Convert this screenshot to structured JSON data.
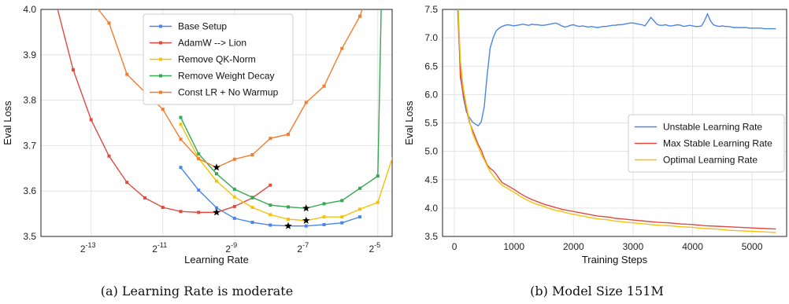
{
  "chart_data": [
    {
      "type": "line",
      "caption": "(a) Learning Rate is moderate",
      "xlabel": "Learning Rate",
      "ylabel": "Eval Loss",
      "xscale": "log2",
      "xlim": [
        -14.4,
        -4.6
      ],
      "ylim": [
        3.5,
        4.0
      ],
      "x_ticks": [
        -13,
        -11,
        -9,
        -7,
        -5
      ],
      "x_tick_labels": [
        {
          "base": "2",
          "exp": "-13"
        },
        {
          "base": "2",
          "exp": "-11"
        },
        {
          "base": "2",
          "exp": "-9"
        },
        {
          "base": "2",
          "exp": "-7"
        },
        {
          "base": "2",
          "exp": "-5"
        }
      ],
      "y_ticks": [
        "3.5",
        "3.6",
        "3.7",
        "3.8",
        "3.9",
        "4.0"
      ],
      "grid": true,
      "legend_position": "top-center",
      "series": [
        {
          "name": "Base Setup",
          "color": "#4a86e8",
          "x_log2": [
            -10.5,
            -10.0,
            -9.5,
            -9.0,
            -8.5,
            -8.0,
            -7.5,
            -7.0,
            -6.5,
            -6.0,
            -5.5
          ],
          "y": [
            3.652,
            3.602,
            3.563,
            3.54,
            3.531,
            3.525,
            3.523,
            3.523,
            3.526,
            3.53,
            3.543
          ],
          "best_index": 6
        },
        {
          "name": "AdamW --> Lion",
          "color": "#e04a3f",
          "x_log2": [
            -14.0,
            -13.5,
            -13.0,
            -12.5,
            -12.0,
            -11.5,
            -11.0,
            -10.5,
            -10.0,
            -9.5,
            -9.0,
            -8.5,
            -8.0
          ],
          "y": [
            4.02,
            3.867,
            3.757,
            3.677,
            3.619,
            3.585,
            3.564,
            3.555,
            3.553,
            3.553,
            3.566,
            3.585,
            3.613
          ],
          "best_index": 9
        },
        {
          "name": "Remove QK-Norm",
          "color": "#f4c20d",
          "x_log2": [
            -10.5,
            -10.0,
            -9.5,
            -9.0,
            -8.5,
            -8.0,
            -7.5,
            -7.0,
            -6.5,
            -6.0,
            -5.5,
            -5.0,
            -4.5
          ],
          "y": [
            3.747,
            3.672,
            3.622,
            3.587,
            3.564,
            3.548,
            3.538,
            3.535,
            3.543,
            3.543,
            3.56,
            3.575,
            3.696
          ],
          "best_index": 7
        },
        {
          "name": "Remove Weight Decay",
          "color": "#34a853",
          "x_log2": [
            -10.5,
            -10.0,
            -9.5,
            -9.0,
            -8.5,
            -8.0,
            -7.5,
            -7.0,
            -6.5,
            -6.0,
            -5.5,
            -5.0
          ],
          "y": [
            3.762,
            3.682,
            3.638,
            3.604,
            3.586,
            3.569,
            3.565,
            3.562,
            3.572,
            3.579,
            3.606,
            3.633
          ],
          "best_index": 7
        },
        {
          "name": "Const LR + No Warmup",
          "color": "#f57c2b",
          "x_log2": [
            -13.0,
            -12.5,
            -12.0,
            -11.5,
            -11.0,
            -10.5,
            -10.0,
            -9.5,
            -9.0,
            -8.5,
            -8.0,
            -7.5,
            -7.0,
            -6.5,
            -6.0,
            -5.5
          ],
          "y": [
            4.02,
            3.97,
            3.857,
            3.818,
            3.78,
            3.714,
            3.671,
            3.652,
            3.67,
            3.68,
            3.716,
            3.725,
            3.795,
            3.831,
            3.914,
            3.985
          ],
          "best_index": 7
        }
      ],
      "extra_segments": [
        {
          "color": "#34a853",
          "x_log2": [
            -5.0,
            -4.9
          ],
          "y": [
            3.633,
            4.02
          ]
        },
        {
          "color": "#f57c2b",
          "x_log2": [
            -5.5,
            -5.35
          ],
          "y": [
            3.985,
            4.02
          ]
        }
      ]
    },
    {
      "type": "line",
      "caption": "(b) Model Size 151M",
      "xlabel": "Training Steps",
      "ylabel": "Eval Loss",
      "xlim": [
        -200,
        5580
      ],
      "ylim": [
        3.5,
        7.5
      ],
      "x_ticks": [
        "0",
        "1000",
        "2000",
        "3000",
        "4000",
        "5000"
      ],
      "y_ticks": [
        "3.5",
        "4.0",
        "4.5",
        "5.0",
        "5.5",
        "6.0",
        "6.5",
        "7.0",
        "7.5"
      ],
      "grid": true,
      "legend_position": "center-right",
      "series": [
        {
          "name": "Unstable Learning Rate",
          "color": "#4a86e8",
          "x": [
            50,
            100,
            150,
            200,
            250,
            300,
            350,
            400,
            450,
            500,
            550,
            600,
            650,
            700,
            750,
            800,
            850,
            900,
            950,
            1000,
            1050,
            1100,
            1150,
            1200,
            1250,
            1300,
            1350,
            1400,
            1450,
            1500,
            1550,
            1600,
            1650,
            1700,
            1750,
            1800,
            1850,
            1900,
            1950,
            2000,
            2050,
            2100,
            2150,
            2200,
            2250,
            2300,
            2350,
            2400,
            2450,
            2500,
            2550,
            2600,
            2650,
            2700,
            2750,
            2800,
            2850,
            2900,
            2950,
            3000,
            3050,
            3100,
            3150,
            3200,
            3250,
            3300,
            3350,
            3400,
            3450,
            3500,
            3550,
            3600,
            3650,
            3700,
            3750,
            3800,
            3850,
            3900,
            3950,
            4000,
            4050,
            4100,
            4150,
            4200,
            4250,
            4300,
            4350,
            4400,
            4450,
            4500,
            4550,
            4600,
            4650,
            4700,
            4750,
            4800,
            4850,
            4900,
            4950,
            5000,
            5050,
            5100,
            5150,
            5200,
            5250,
            5300,
            5350,
            5400
          ],
          "y": [
            7.6,
            6.4,
            5.95,
            5.7,
            5.6,
            5.52,
            5.48,
            5.45,
            5.52,
            5.78,
            6.35,
            6.82,
            7.0,
            7.12,
            7.17,
            7.2,
            7.22,
            7.23,
            7.22,
            7.21,
            7.22,
            7.23,
            7.24,
            7.23,
            7.22,
            7.24,
            7.23,
            7.23,
            7.22,
            7.22,
            7.23,
            7.24,
            7.25,
            7.26,
            7.24,
            7.21,
            7.19,
            7.2,
            7.22,
            7.23,
            7.21,
            7.2,
            7.21,
            7.2,
            7.19,
            7.2,
            7.19,
            7.18,
            7.19,
            7.2,
            7.2,
            7.21,
            7.22,
            7.22,
            7.23,
            7.23,
            7.24,
            7.25,
            7.26,
            7.26,
            7.25,
            7.24,
            7.23,
            7.21,
            7.28,
            7.36,
            7.3,
            7.24,
            7.22,
            7.22,
            7.23,
            7.21,
            7.21,
            7.22,
            7.23,
            7.22,
            7.2,
            7.21,
            7.22,
            7.21,
            7.2,
            7.2,
            7.21,
            7.3,
            7.42,
            7.3,
            7.23,
            7.21,
            7.2,
            7.21,
            7.2,
            7.2,
            7.19,
            7.18,
            7.18,
            7.18,
            7.18,
            7.18,
            7.17,
            7.17,
            7.17,
            7.17,
            7.17,
            7.16,
            7.16,
            7.16,
            7.16,
            7.16
          ]
        },
        {
          "name": "Max Stable Learning Rate",
          "color": "#e04a3f",
          "x": [
            60,
            100,
            150,
            200,
            250,
            300,
            350,
            400,
            450,
            500,
            550,
            600,
            650,
            700,
            750,
            800,
            850,
            900,
            1000,
            1100,
            1200,
            1300,
            1400,
            1500,
            1600,
            1700,
            1800,
            1900,
            2000,
            2100,
            2200,
            2300,
            2400,
            2500,
            2600,
            2700,
            2800,
            2900,
            3000,
            3200,
            3400,
            3600,
            3800,
            4000,
            4200,
            4400,
            4600,
            4800,
            5000,
            5200,
            5400
          ],
          "y": [
            7.6,
            6.3,
            6.0,
            5.75,
            5.52,
            5.38,
            5.25,
            5.12,
            5.02,
            4.88,
            4.76,
            4.7,
            4.66,
            4.6,
            4.52,
            4.45,
            4.42,
            4.39,
            4.33,
            4.26,
            4.2,
            4.15,
            4.11,
            4.07,
            4.04,
            4.01,
            3.98,
            3.96,
            3.94,
            3.92,
            3.9,
            3.88,
            3.86,
            3.85,
            3.84,
            3.82,
            3.81,
            3.8,
            3.79,
            3.77,
            3.75,
            3.74,
            3.72,
            3.71,
            3.69,
            3.68,
            3.67,
            3.66,
            3.65,
            3.64,
            3.63
          ]
        },
        {
          "name": "Optimal Learning Rate",
          "color": "#f4c20d",
          "x": [
            60,
            100,
            150,
            200,
            250,
            300,
            350,
            400,
            450,
            500,
            550,
            600,
            650,
            700,
            750,
            800,
            850,
            900,
            1000,
            1100,
            1200,
            1300,
            1400,
            1500,
            1600,
            1700,
            1800,
            1900,
            2000,
            2100,
            2200,
            2300,
            2400,
            2500,
            2600,
            2700,
            2800,
            2900,
            3000,
            3200,
            3400,
            3600,
            3800,
            4000,
            4200,
            4400,
            4600,
            4800,
            5000,
            5200,
            5400
          ],
          "y": [
            7.6,
            6.6,
            6.1,
            5.8,
            5.55,
            5.33,
            5.2,
            5.08,
            4.95,
            4.85,
            4.74,
            4.64,
            4.57,
            4.5,
            4.46,
            4.4,
            4.37,
            4.34,
            4.28,
            4.21,
            4.15,
            4.1,
            4.06,
            4.03,
            3.99,
            3.96,
            3.94,
            3.91,
            3.89,
            3.87,
            3.85,
            3.83,
            3.81,
            3.8,
            3.79,
            3.77,
            3.76,
            3.75,
            3.74,
            3.72,
            3.7,
            3.69,
            3.67,
            3.66,
            3.64,
            3.63,
            3.61,
            3.6,
            3.59,
            3.58,
            3.57
          ]
        }
      ]
    }
  ]
}
